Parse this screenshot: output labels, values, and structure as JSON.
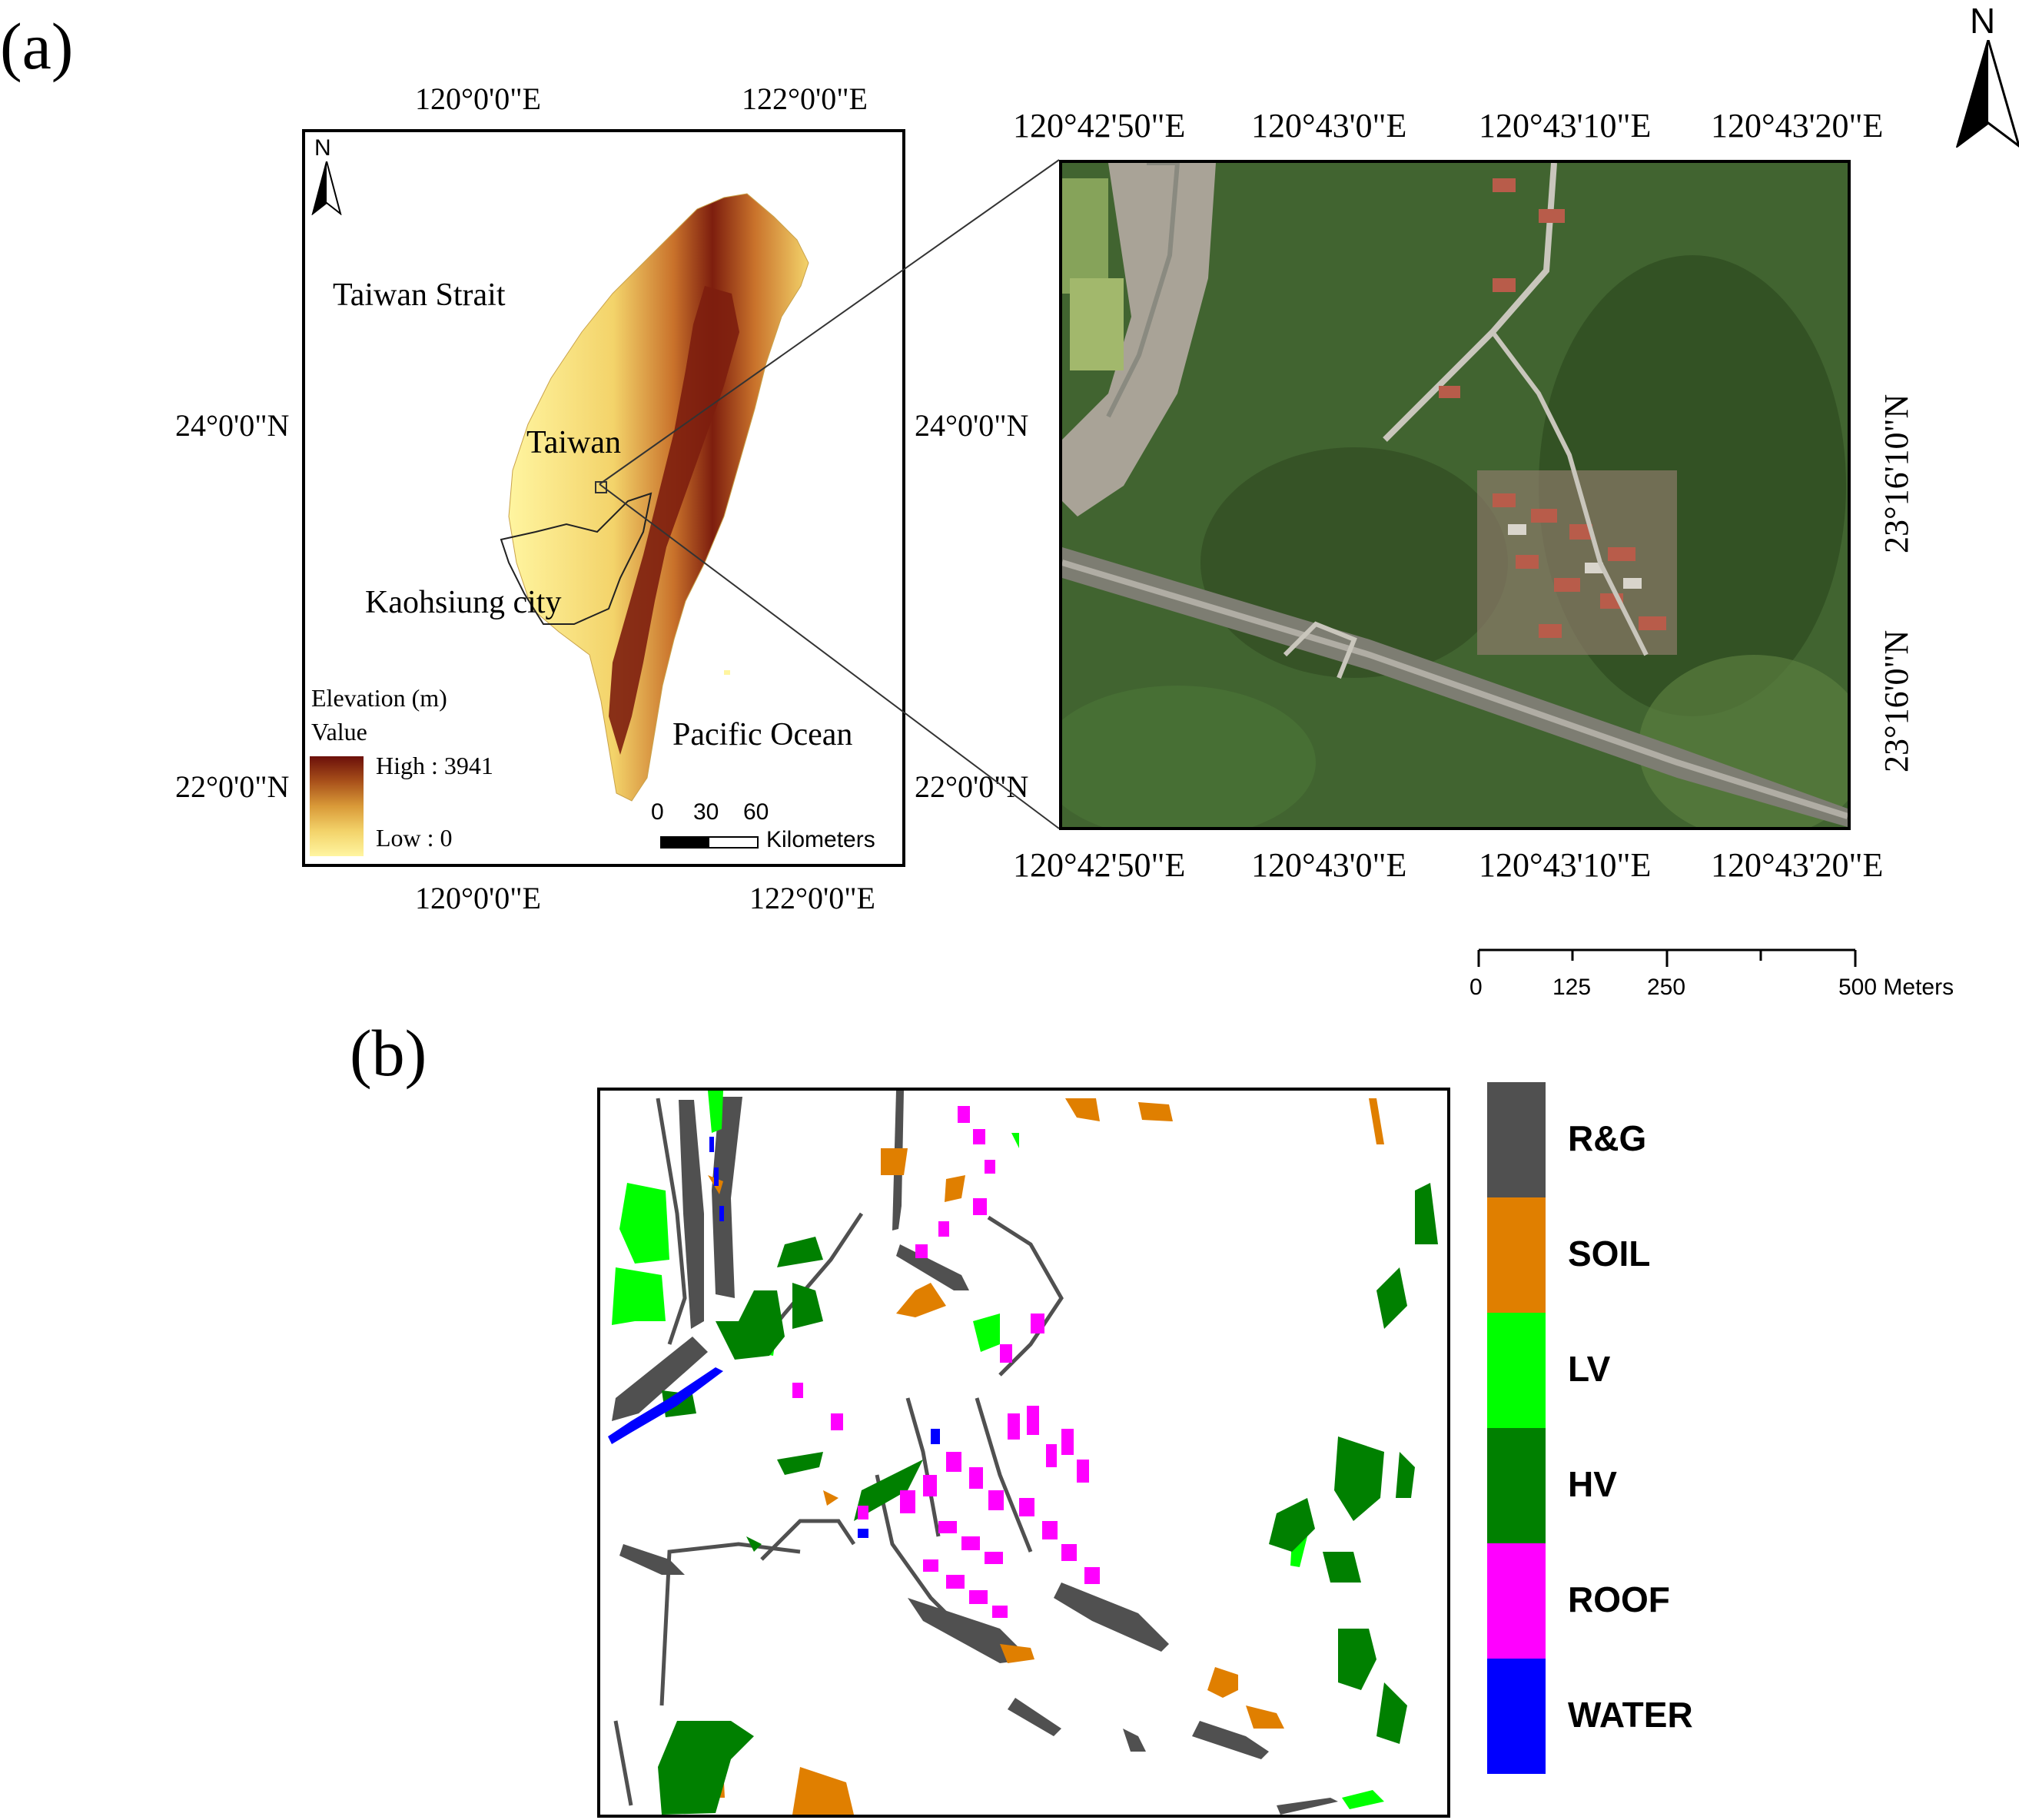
{
  "panel_a": {
    "label": "(a)",
    "inset": {
      "north": "N",
      "top_lon": [
        "120°0'0\"E",
        "122°0'0\"E"
      ],
      "bottom_lon": [
        "120°0'0\"E",
        "122°0'0\"E"
      ],
      "left_lat": [
        "24°0'0\"N",
        "22°0'0\"N"
      ],
      "right_lat": [
        "24°0'0\"N",
        "22°0'0\"N"
      ],
      "places": {
        "strait": "Taiwan Strait",
        "island": "Taiwan",
        "city": "Kaohsiung city",
        "ocean": "Pacific Ocean"
      },
      "legend": {
        "title": "Elevation (m)",
        "subtitle": "Value",
        "high": "High : 3941",
        "low": "Low : 0",
        "colors": [
          "#6b0f0a",
          "#a8501a",
          "#d99a38",
          "#f3d36a",
          "#fff5a0"
        ]
      },
      "scale": {
        "ticks": [
          "0",
          "30",
          "60"
        ],
        "unit": "Kilometers"
      }
    },
    "aerial": {
      "top_lon": [
        "120°42'50\"E",
        "120°43'0\"E",
        "120°43'10\"E",
        "120°43'20\"E"
      ],
      "bottom_lon": [
        "120°42'50\"E",
        "120°43'0\"E",
        "120°43'10\"E",
        "120°43'20\"E"
      ],
      "right_lat": [
        "23°16'10\"N",
        "23°16'0\"N"
      ],
      "north": "N",
      "scale": {
        "ticks": [
          "0",
          "125",
          "250",
          "500 Meters"
        ]
      }
    }
  },
  "panel_b": {
    "label": "(b)",
    "legend": [
      {
        "name": "R&G",
        "color": "#505050"
      },
      {
        "name": "SOIL",
        "color": "#e07f00"
      },
      {
        "name": "LV",
        "color": "#00ff00"
      },
      {
        "name": "HV",
        "color": "#008000"
      },
      {
        "name": "ROOF",
        "color": "#ff00ff"
      },
      {
        "name": "WATER",
        "color": "#0000ff"
      }
    ]
  }
}
